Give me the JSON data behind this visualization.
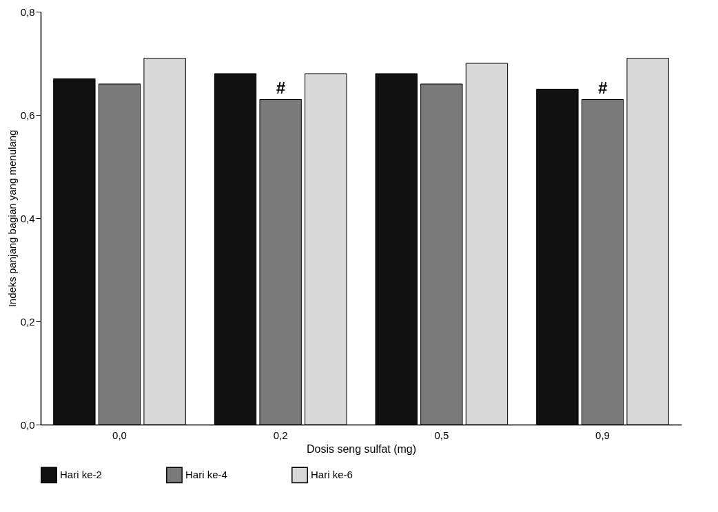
{
  "chart_data": {
    "type": "bar",
    "xlabel": "Dosis seng sulfat (mg)",
    "ylabel": "Indeks panjang bagian yang menulang",
    "categories": [
      "0,0",
      "0,2",
      "0,5",
      "0,9"
    ],
    "series": [
      {
        "name": "Hari ke-2",
        "color": "#111111",
        "values": [
          0.67,
          0.68,
          0.68,
          0.65
        ]
      },
      {
        "name": "Hari ke-4",
        "color": "#7a7a7a",
        "values": [
          0.66,
          0.63,
          0.66,
          0.63
        ]
      },
      {
        "name": "Hari ke-6",
        "color": "#d9d9d9",
        "values": [
          0.71,
          0.68,
          0.7,
          0.71
        ]
      }
    ],
    "ylim": [
      0,
      0.8
    ],
    "yticks": [
      {
        "value": 0,
        "label": "0,0"
      },
      {
        "value": 0.2,
        "label": "0,2"
      },
      {
        "value": 0.4,
        "label": "0,4"
      },
      {
        "value": 0.6,
        "label": "0,6"
      },
      {
        "value": 0.8,
        "label": "0,8"
      }
    ],
    "annotations": [
      {
        "text": "#",
        "x": "0,2",
        "y": 0.63
      },
      {
        "text": "#",
        "x": "0,9",
        "y": 0.63
      }
    ],
    "grid": false,
    "legend": "bottom"
  }
}
